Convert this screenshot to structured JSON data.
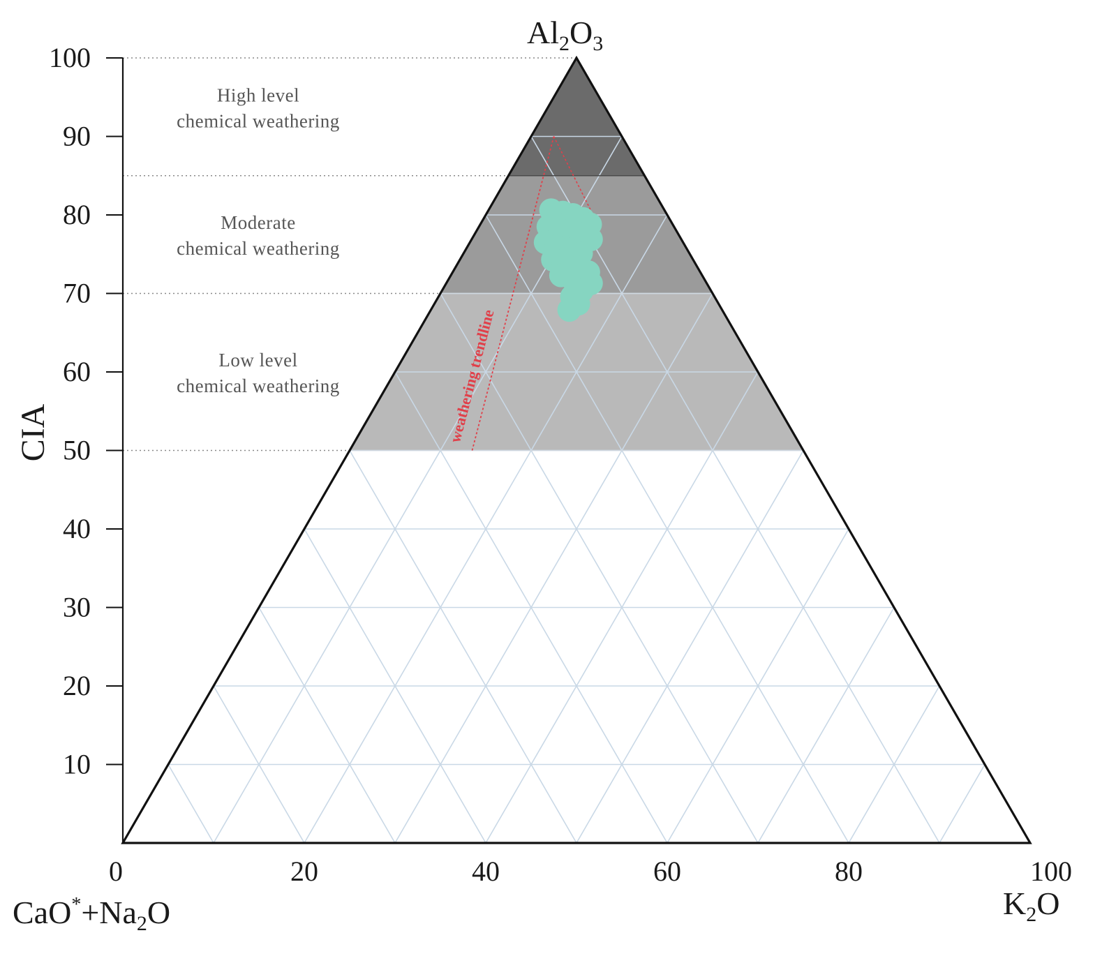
{
  "chart_data": {
    "type": "scatter",
    "diagram": "ternary",
    "vertices": {
      "top": {
        "base": "Al",
        "sub1": "2",
        "mid": "O",
        "sub2": "3"
      },
      "left": {
        "part1": "CaO",
        "sup": "*",
        "part2": "+Na",
        "sub": "2",
        "part3": "O"
      },
      "right": {
        "base": "K",
        "sub": "2",
        "tail": "O"
      }
    },
    "ylabel": "CIA",
    "ylim": [
      0,
      100
    ],
    "y_ticks": [
      "100",
      "90",
      "80",
      "70",
      "60",
      "50",
      "40",
      "30",
      "20",
      "10"
    ],
    "x_ticks": [
      "0",
      "20",
      "40",
      "60",
      "80",
      "100"
    ],
    "zones": [
      {
        "line1": "High level",
        "line2": "chemical weathering",
        "cia_range": [
          85,
          100
        ],
        "color": "#6b6b6b"
      },
      {
        "line1": "Moderate",
        "line2": "chemical weathering",
        "cia_range": [
          70,
          85
        ],
        "color": "#9b9b9b"
      },
      {
        "line1": "Low level",
        "line2": "chemical weathering",
        "cia_range": [
          50,
          70
        ],
        "color": "#b9b9b9"
      }
    ],
    "zone_boundaries": [
      100,
      85,
      70,
      50
    ],
    "grid": true,
    "trendline_label": "weathering trendline",
    "trendline": {
      "from": {
        "cia": 50,
        "k2o_axis": 38.5
      },
      "to": {
        "cia": 90,
        "k2o_axis": 47.5
      }
    },
    "points_color": "#86d5c1",
    "trend_color": "#e0404a",
    "points": [
      {
        "x": 47.2,
        "y": 80.6
      },
      {
        "x": 48.5,
        "y": 80.3
      },
      {
        "x": 49.6,
        "y": 80.0
      },
      {
        "x": 50.7,
        "y": 79.5
      },
      {
        "x": 51.5,
        "y": 78.8
      },
      {
        "x": 46.9,
        "y": 78.5
      },
      {
        "x": 48.2,
        "y": 78.1
      },
      {
        "x": 50.4,
        "y": 77.6
      },
      {
        "x": 51.6,
        "y": 76.9
      },
      {
        "x": 46.6,
        "y": 76.5
      },
      {
        "x": 47.8,
        "y": 76.0
      },
      {
        "x": 49.1,
        "y": 75.6
      },
      {
        "x": 50.5,
        "y": 75.1
      },
      {
        "x": 47.4,
        "y": 74.3
      },
      {
        "x": 48.6,
        "y": 73.8
      },
      {
        "x": 50.1,
        "y": 73.3
      },
      {
        "x": 51.3,
        "y": 72.7
      },
      {
        "x": 48.3,
        "y": 72.3
      },
      {
        "x": 49.6,
        "y": 71.8
      },
      {
        "x": 51.6,
        "y": 71.3
      },
      {
        "x": 50.6,
        "y": 70.4
      },
      {
        "x": 49.5,
        "y": 69.6
      },
      {
        "x": 50.2,
        "y": 68.7
      },
      {
        "x": 49.2,
        "y": 67.9
      }
    ]
  }
}
